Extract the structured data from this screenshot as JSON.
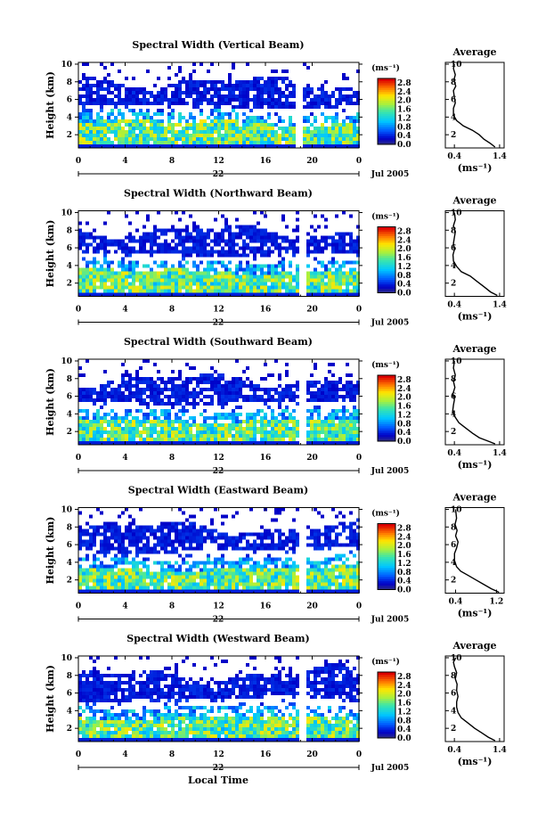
{
  "chart_data": [
    {
      "type": "heatmap",
      "title": "Spectral Width (Vertical Beam)",
      "ylabel": "Height (km)",
      "x_ticks": [
        "0",
        "4",
        "8",
        "12",
        "16",
        "20",
        "0"
      ],
      "y_ticks": [
        "2",
        "4",
        "6",
        "8",
        "10"
      ],
      "xlim": [
        0,
        24
      ],
      "ylim": [
        0.5,
        10.2
      ],
      "day_label": "22",
      "date_label": "Jul 2005",
      "colorbar": {
        "unit": "(ms⁻¹)",
        "ticks": [
          "0.0",
          "0.4",
          "0.8",
          "1.2",
          "1.6",
          "2.0",
          "2.4",
          "2.8"
        ],
        "range": [
          0,
          3.0
        ]
      },
      "data_gap_hours": [
        18.8,
        19.2
      ],
      "profile": {
        "title": "Average",
        "xlabel": "(ms⁻¹)",
        "x_ticks": [
          "0.4",
          "1.4"
        ],
        "xlim": [
          0.2,
          1.5
        ],
        "y_ticks": [
          "2",
          "4",
          "6",
          "8",
          "10"
        ],
        "points": [
          [
            1.3,
            0.6
          ],
          [
            1.2,
            1.0
          ],
          [
            1.05,
            1.5
          ],
          [
            0.95,
            2.0
          ],
          [
            0.8,
            2.5
          ],
          [
            0.6,
            3.0
          ],
          [
            0.45,
            3.6
          ],
          [
            0.38,
            4.2
          ],
          [
            0.38,
            5.0
          ],
          [
            0.42,
            5.6
          ],
          [
            0.4,
            6.2
          ],
          [
            0.38,
            7.0
          ],
          [
            0.43,
            7.5
          ],
          [
            0.39,
            8.2
          ],
          [
            0.42,
            8.8
          ],
          [
            0.38,
            9.5
          ],
          [
            0.4,
            10.0
          ]
        ]
      }
    },
    {
      "type": "heatmap",
      "title": "Spectral Width (Northward Beam)",
      "ylabel": "Height (km)",
      "x_ticks": [
        "0",
        "4",
        "8",
        "12",
        "16",
        "20",
        "0"
      ],
      "y_ticks": [
        "2",
        "4",
        "6",
        "8",
        "10"
      ],
      "xlim": [
        0,
        24
      ],
      "ylim": [
        0.5,
        10.2
      ],
      "day_label": "22",
      "date_label": "Jul 2005",
      "colorbar": {
        "unit": "(ms⁻¹)",
        "ticks": [
          "0.0",
          "0.4",
          "0.8",
          "1.2",
          "1.6",
          "2.0",
          "2.4",
          "2.8"
        ],
        "range": [
          0,
          3.0
        ]
      },
      "data_gap_hours": [
        19.0,
        19.3
      ],
      "profile": {
        "title": "Average",
        "xlabel": "(ms⁻¹)",
        "x_ticks": [
          "0.4",
          "1.4"
        ],
        "xlim": [
          0.2,
          1.5
        ],
        "y_ticks": [
          "2",
          "4",
          "6",
          "8",
          "10"
        ],
        "points": [
          [
            1.35,
            0.6
          ],
          [
            1.2,
            1.0
          ],
          [
            1.05,
            1.6
          ],
          [
            0.9,
            2.2
          ],
          [
            0.75,
            2.8
          ],
          [
            0.55,
            3.3
          ],
          [
            0.45,
            3.9
          ],
          [
            0.38,
            4.5
          ],
          [
            0.37,
            5.2
          ],
          [
            0.4,
            5.8
          ],
          [
            0.38,
            6.5
          ],
          [
            0.4,
            7.2
          ],
          [
            0.42,
            7.8
          ],
          [
            0.38,
            8.5
          ],
          [
            0.42,
            9.2
          ],
          [
            0.4,
            10.0
          ]
        ]
      }
    },
    {
      "type": "heatmap",
      "title": "Spectral Width (Southward Beam)",
      "ylabel": "Height (km)",
      "x_ticks": [
        "0",
        "4",
        "8",
        "12",
        "16",
        "20",
        "0"
      ],
      "y_ticks": [
        "2",
        "4",
        "6",
        "8",
        "10"
      ],
      "xlim": [
        0,
        24
      ],
      "ylim": [
        0.5,
        10.2
      ],
      "day_label": "22",
      "date_label": "Jul 2005",
      "colorbar": {
        "unit": "(ms⁻¹)",
        "ticks": [
          "0.0",
          "0.4",
          "0.8",
          "1.2",
          "1.6",
          "2.0",
          "2.4",
          "2.8"
        ],
        "range": [
          0,
          3.0
        ]
      },
      "data_gap_hours": [
        19.0,
        19.3
      ],
      "profile": {
        "title": "Average",
        "xlabel": "(ms⁻¹)",
        "x_ticks": [
          "0.4",
          "1.4"
        ],
        "xlim": [
          0.2,
          1.5
        ],
        "y_ticks": [
          "2",
          "4",
          "6",
          "8",
          "10"
        ],
        "points": [
          [
            1.3,
            0.6
          ],
          [
            1.15,
            0.9
          ],
          [
            0.95,
            1.3
          ],
          [
            0.8,
            1.8
          ],
          [
            0.65,
            2.4
          ],
          [
            0.5,
            3.0
          ],
          [
            0.42,
            3.6
          ],
          [
            0.36,
            4.2
          ],
          [
            0.38,
            5.0
          ],
          [
            0.4,
            5.6
          ],
          [
            0.37,
            6.3
          ],
          [
            0.41,
            7.0
          ],
          [
            0.38,
            7.7
          ],
          [
            0.42,
            8.4
          ],
          [
            0.38,
            9.2
          ],
          [
            0.4,
            10.0
          ]
        ]
      }
    },
    {
      "type": "heatmap",
      "title": "Spectral Width (Eastward Beam)",
      "ylabel": "Height (km)",
      "x_ticks": [
        "0",
        "4",
        "8",
        "12",
        "16",
        "20",
        "0"
      ],
      "y_ticks": [
        "2",
        "4",
        "6",
        "8",
        "10"
      ],
      "xlim": [
        0,
        24
      ],
      "ylim": [
        0.5,
        10.2
      ],
      "day_label": "22",
      "date_label": "Jul 2005",
      "colorbar": {
        "unit": "(ms⁻¹)",
        "ticks": [
          "0.0",
          "0.4",
          "0.8",
          "1.2",
          "1.6",
          "2.0",
          "2.4",
          "2.8"
        ],
        "range": [
          0,
          3.0
        ]
      },
      "data_gap_hours": [
        19.0,
        19.3
      ],
      "profile": {
        "title": "Average",
        "xlabel": "(ms⁻¹)",
        "x_ticks": [
          "0.4",
          "1.2"
        ],
        "xlim": [
          0.2,
          1.35
        ],
        "y_ticks": [
          "2",
          "4",
          "6",
          "8",
          "10"
        ],
        "points": [
          [
            1.25,
            0.6
          ],
          [
            1.1,
            1.0
          ],
          [
            0.95,
            1.5
          ],
          [
            0.8,
            2.0
          ],
          [
            0.65,
            2.5
          ],
          [
            0.5,
            3.0
          ],
          [
            0.42,
            3.5
          ],
          [
            0.38,
            4.2
          ],
          [
            0.38,
            5.0
          ],
          [
            0.42,
            5.6
          ],
          [
            0.45,
            6.3
          ],
          [
            0.4,
            7.0
          ],
          [
            0.43,
            7.6
          ],
          [
            0.39,
            8.3
          ],
          [
            0.42,
            9.0
          ],
          [
            0.4,
            10.0
          ]
        ]
      }
    },
    {
      "type": "heatmap",
      "title": "Spectral Width (Westward Beam)",
      "ylabel": "Height (km)",
      "xlabel": "Local Time",
      "x_ticks": [
        "0",
        "4",
        "8",
        "12",
        "16",
        "20",
        "0"
      ],
      "y_ticks": [
        "2",
        "4",
        "6",
        "8",
        "10"
      ],
      "xlim": [
        0,
        24
      ],
      "ylim": [
        0.5,
        10.2
      ],
      "day_label": "22",
      "date_label": "Jul 2005",
      "colorbar": {
        "unit": "(ms⁻¹)",
        "ticks": [
          "0.0",
          "0.4",
          "0.8",
          "1.2",
          "1.6",
          "2.0",
          "2.4",
          "2.8"
        ],
        "range": [
          0,
          3.0
        ]
      },
      "data_gap_hours": [
        19.0,
        19.3
      ],
      "profile": {
        "title": "Average",
        "xlabel": "(ms⁻¹)",
        "x_ticks": [
          "0.4",
          "1.4"
        ],
        "xlim": [
          0.2,
          1.5
        ],
        "y_ticks": [
          "2",
          "4",
          "6",
          "8",
          "10"
        ],
        "points": [
          [
            1.3,
            0.6
          ],
          [
            1.15,
            1.0
          ],
          [
            1.0,
            1.5
          ],
          [
            0.85,
            2.0
          ],
          [
            0.7,
            2.6
          ],
          [
            0.55,
            3.2
          ],
          [
            0.48,
            3.8
          ],
          [
            0.45,
            4.4
          ],
          [
            0.45,
            5.0
          ],
          [
            0.48,
            5.6
          ],
          [
            0.45,
            6.3
          ],
          [
            0.46,
            7.0
          ],
          [
            0.42,
            7.6
          ],
          [
            0.45,
            8.3
          ],
          [
            0.4,
            9.0
          ],
          [
            0.38,
            9.5
          ],
          [
            0.43,
            10.0
          ]
        ]
      }
    }
  ]
}
